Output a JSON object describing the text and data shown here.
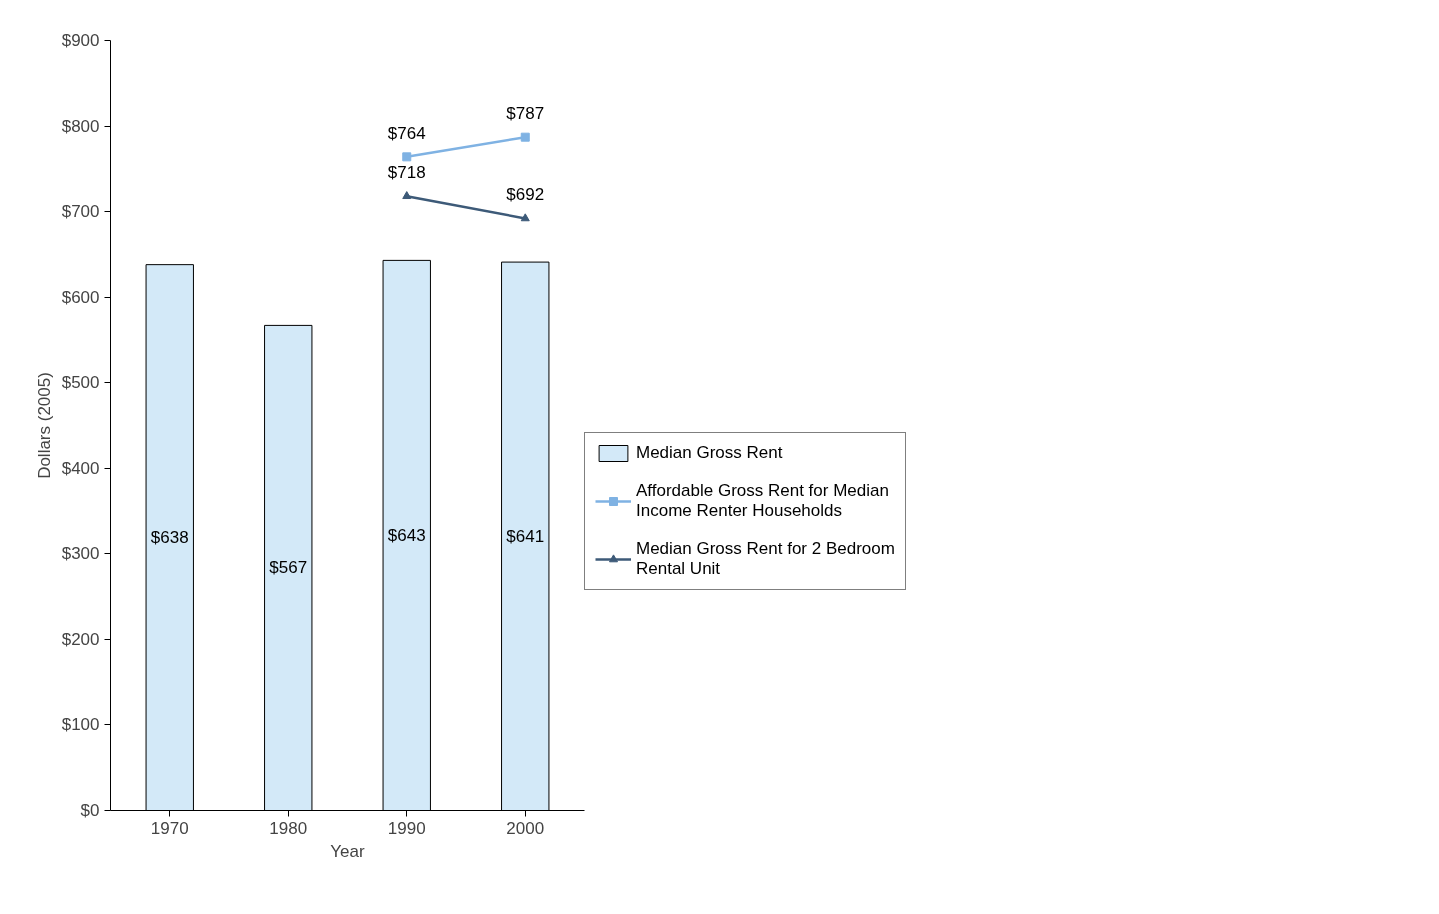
{
  "chart_data": {
    "type": "bar",
    "xlabel": "Year",
    "ylabel": "Dollars (2005)",
    "categories": [
      "1970",
      "1980",
      "1990",
      "2000"
    ],
    "series": [
      {
        "name": "Median Gross Rent",
        "color": "#d3e9f8",
        "values": [
          638,
          567,
          643,
          641
        ],
        "value_labels": [
          "$638",
          "$567",
          "$643",
          "$641"
        ]
      },
      {
        "name": "Affordable Gross Rent for Median Income Renter Households",
        "type": "line",
        "color": "#7fb2e3",
        "marker": "square",
        "values": [
          null,
          null,
          764,
          787
        ],
        "value_labels": [
          null,
          null,
          "$764",
          "$787"
        ]
      },
      {
        "name": "Median Gross Rent for 2 Bedroom Rental Unit",
        "type": "line",
        "color": "#3d5a78",
        "marker": "triangle",
        "values": [
          null,
          null,
          718,
          692
        ],
        "value_labels": [
          null,
          null,
          "$718",
          "$692"
        ]
      }
    ],
    "ylim": [
      0,
      900
    ],
    "yticks": [
      {
        "value": 0,
        "label": "$0"
      },
      {
        "value": 100,
        "label": "$100"
      },
      {
        "value": 200,
        "label": "$200"
      },
      {
        "value": 300,
        "label": "$300"
      },
      {
        "value": 400,
        "label": "$400"
      },
      {
        "value": 500,
        "label": "$500"
      },
      {
        "value": 600,
        "label": "$600"
      },
      {
        "value": 700,
        "label": "$700"
      },
      {
        "value": 800,
        "label": "$800"
      },
      {
        "value": 900,
        "label": "$900"
      }
    ],
    "grid": false,
    "legend": "right"
  }
}
